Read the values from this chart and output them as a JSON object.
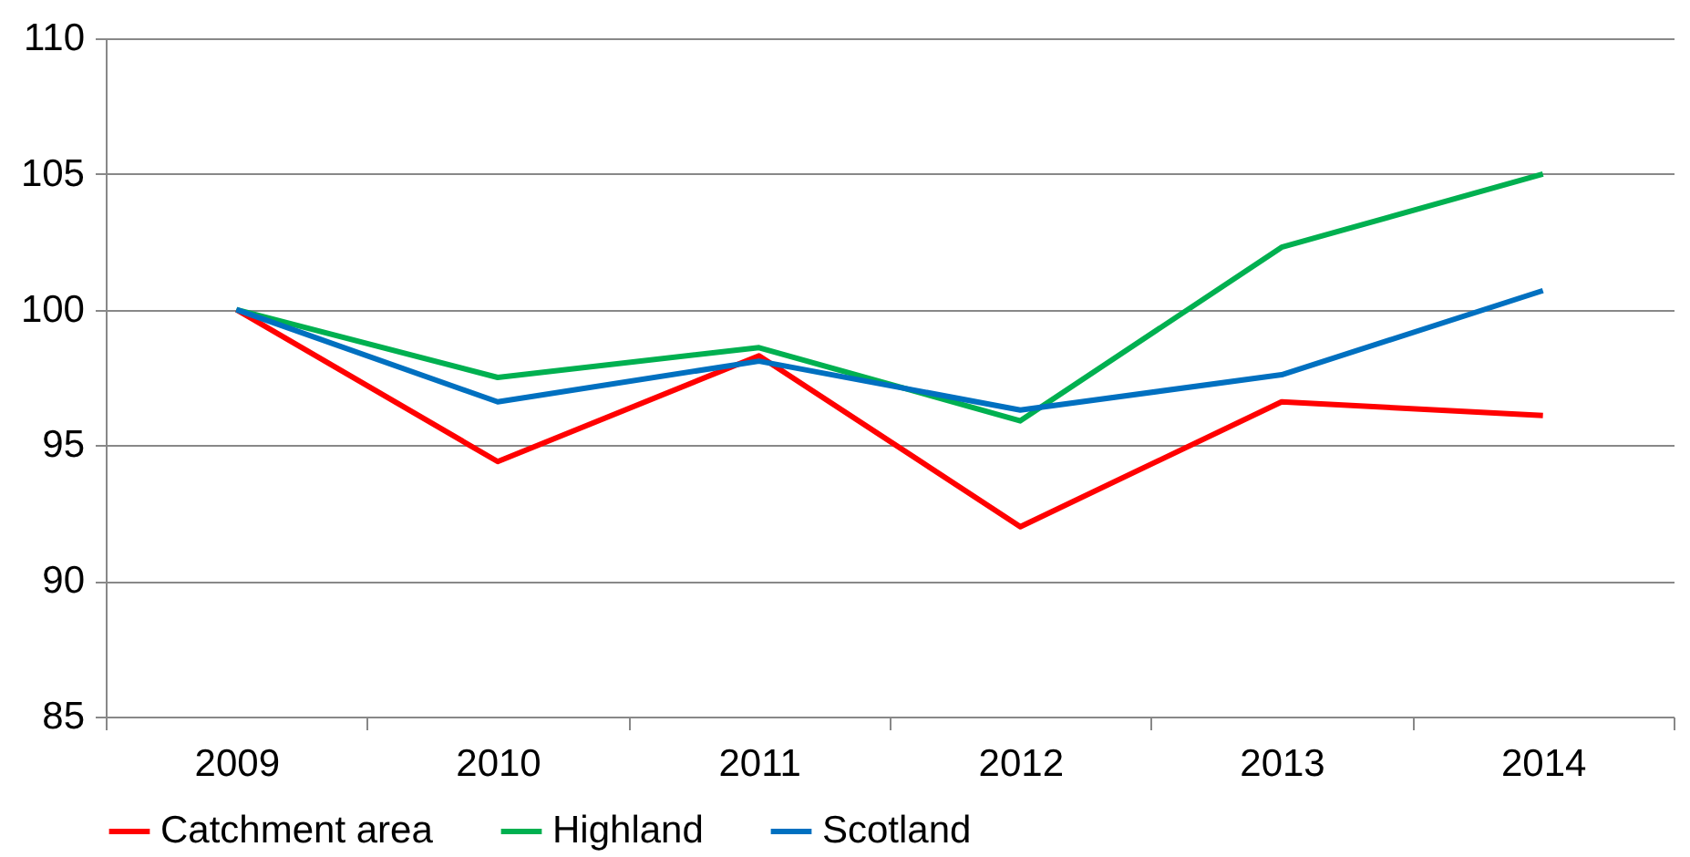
{
  "chart_data": {
    "type": "line",
    "categories": [
      "2009",
      "2010",
      "2011",
      "2012",
      "2013",
      "2014"
    ],
    "series": [
      {
        "name": "Catchment area",
        "color": "#ff0000",
        "values": [
          100,
          94.4,
          98.3,
          92.0,
          96.6,
          96.1
        ]
      },
      {
        "name": "Highland",
        "color": "#00b050",
        "values": [
          100,
          97.5,
          98.6,
          95.9,
          102.3,
          105.0
        ]
      },
      {
        "name": "Scotland",
        "color": "#0070c0",
        "values": [
          100,
          96.6,
          98.1,
          96.3,
          97.6,
          100.7
        ]
      }
    ],
    "ylim": [
      85,
      110
    ],
    "yticks": [
      85,
      90,
      95,
      100,
      105,
      110
    ],
    "grid": "y",
    "legend": "bottom",
    "line_style": "solid"
  }
}
